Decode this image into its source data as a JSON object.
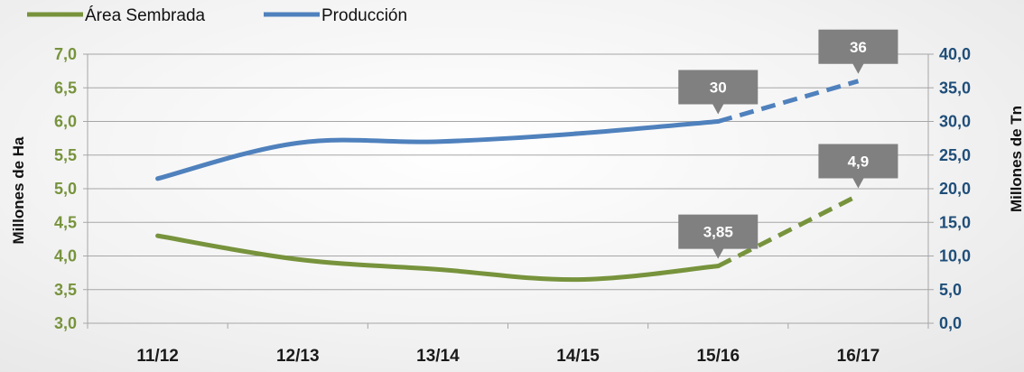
{
  "chart_data": {
    "type": "line",
    "categories": [
      "11/12",
      "12/13",
      "13/14",
      "14/15",
      "15/16",
      "16/17"
    ],
    "series": [
      {
        "name": "Área Sembrada",
        "axis": "left",
        "values": [
          4.3,
          3.95,
          3.8,
          3.65,
          3.85,
          4.9
        ],
        "projected_from_index": 4,
        "color": "#77933c"
      },
      {
        "name": "Producción",
        "axis": "right",
        "values": [
          21.5,
          26.8,
          27.0,
          28.2,
          30.0,
          36.0
        ],
        "projected_from_index": 4,
        "color": "#4f81bd"
      }
    ],
    "y_left": {
      "label": "Millones de Ha",
      "ylim": [
        3.0,
        7.0
      ],
      "ticks": [
        "3,0",
        "3,5",
        "4,0",
        "4,5",
        "5,0",
        "5,5",
        "6,0",
        "6,5",
        "7,0"
      ],
      "color": "#77933c"
    },
    "y_right": {
      "label": "Millones de Tn",
      "ylim": [
        0,
        40
      ],
      "ticks": [
        "0,0",
        "5,0",
        "10,0",
        "15,0",
        "20,0",
        "25,0",
        "30,0",
        "35,0",
        "40,0"
      ],
      "color": "#1f4e79"
    },
    "annotations": [
      {
        "text": "36",
        "series": 1,
        "index": 5
      },
      {
        "text": "30",
        "series": 1,
        "index": 4
      },
      {
        "text": "4,9",
        "series": 0,
        "index": 5
      },
      {
        "text": "3,85",
        "series": 0,
        "index": 4
      }
    ],
    "callout_color": "#808080",
    "grid": true,
    "legend_position": "top-left"
  }
}
